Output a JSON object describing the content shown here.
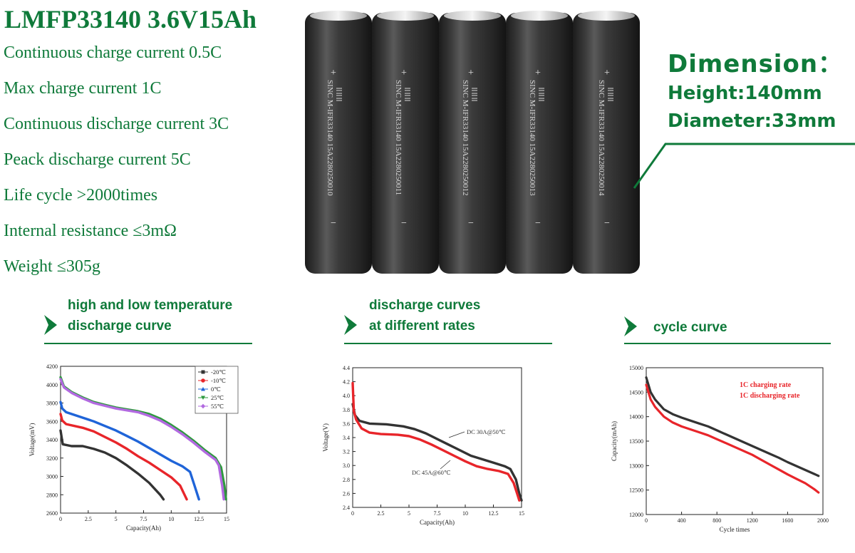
{
  "header": {
    "title": "LMFP33140 3.6V15Ah",
    "specs": [
      "Continuous charge current 0.5C",
      "Max charge current 1C",
      "Continuous discharge current 3C",
      "Peack discharge current 5C",
      "Life cycle >2000times",
      "Internal resistance ≤3mΩ",
      "Weight ≤305g"
    ]
  },
  "product": {
    "cell_labels": [
      "SINC M-IFR33140 15A2280250010",
      "SINC M-IFR33140 15A2280250011",
      "SINC M-IFR33140 15A2280250012",
      "SINC M-IFR33140 15A2280250013",
      "SINC M-IFR33140 15A2280250014"
    ],
    "plus": "+",
    "minus": "−"
  },
  "dimension": {
    "title": "Dimension：",
    "height": "Height:140mm",
    "diameter": "Diameter:33mm"
  },
  "sections": {
    "temp": [
      "high and low temperature",
      "discharge curve"
    ],
    "rates": [
      "discharge curves",
      "at different rates"
    ],
    "cycle": [
      "cycle curve"
    ]
  },
  "colors": {
    "brand_green": "#0f7a3a",
    "black_series": "#333333",
    "red_series": "#e8252a",
    "blue_series": "#1f64d8",
    "green_series": "#2e9a3e",
    "purple_series": "#b26ae0"
  },
  "chart_data": [
    {
      "type": "line",
      "title": "high and low temperature discharge curve",
      "xlabel": "Capacity(Ah)",
      "ylabel": "Voltage(mV)",
      "xlim": [
        0,
        15
      ],
      "ylim": [
        2600,
        4200
      ],
      "xticks": [
        "0",
        "2.5",
        "5",
        "7.5",
        "10",
        "12.5",
        "15"
      ],
      "yticks": [
        "2600",
        "2800",
        "3000",
        "3200",
        "3400",
        "3600",
        "3800",
        "4000",
        "4200"
      ],
      "legend_position": "top-right",
      "series": [
        {
          "name": "-20℃",
          "color": "#333333",
          "marker": "square",
          "points": [
            [
              0,
              3500
            ],
            [
              0.1,
              3420
            ],
            [
              0.2,
              3350
            ],
            [
              1,
              3330
            ],
            [
              2,
              3330
            ],
            [
              3,
              3300
            ],
            [
              4,
              3260
            ],
            [
              5,
              3200
            ],
            [
              6,
              3120
            ],
            [
              7,
              3030
            ],
            [
              8,
              2930
            ],
            [
              9,
              2800
            ],
            [
              9.3,
              2750
            ]
          ]
        },
        {
          "name": "-10℃",
          "color": "#e8252a",
          "marker": "circle",
          "points": [
            [
              0,
              3680
            ],
            [
              0.15,
              3610
            ],
            [
              0.5,
              3570
            ],
            [
              2,
              3530
            ],
            [
              3,
              3490
            ],
            [
              4,
              3430
            ],
            [
              5,
              3370
            ],
            [
              6,
              3300
            ],
            [
              7,
              3220
            ],
            [
              8,
              3150
            ],
            [
              9,
              3070
            ],
            [
              10,
              2990
            ],
            [
              10.8,
              2900
            ],
            [
              11.2,
              2800
            ],
            [
              11.4,
              2750
            ]
          ]
        },
        {
          "name": "0℃",
          "color": "#1f64d8",
          "marker": "triangle-up",
          "points": [
            [
              0,
              3810
            ],
            [
              0.15,
              3740
            ],
            [
              0.5,
              3700
            ],
            [
              2,
              3640
            ],
            [
              3,
              3600
            ],
            [
              4,
              3550
            ],
            [
              5,
              3500
            ],
            [
              6,
              3440
            ],
            [
              7,
              3380
            ],
            [
              8,
              3310
            ],
            [
              9,
              3240
            ],
            [
              10,
              3170
            ],
            [
              11,
              3110
            ],
            [
              11.7,
              3050
            ],
            [
              12.1,
              2900
            ],
            [
              12.5,
              2750
            ]
          ]
        },
        {
          "name": "25℃",
          "color": "#2e9a3e",
          "marker": "triangle-down",
          "points": [
            [
              0,
              4080
            ],
            [
              0.3,
              3980
            ],
            [
              1,
              3920
            ],
            [
              2,
              3860
            ],
            [
              3,
              3810
            ],
            [
              4,
              3780
            ],
            [
              5,
              3750
            ],
            [
              6,
              3730
            ],
            [
              7,
              3710
            ],
            [
              8,
              3680
            ],
            [
              9,
              3630
            ],
            [
              10,
              3560
            ],
            [
              11,
              3480
            ],
            [
              12,
              3390
            ],
            [
              13,
              3290
            ],
            [
              14,
              3200
            ],
            [
              14.5,
              3100
            ],
            [
              14.8,
              2900
            ],
            [
              14.95,
              2750
            ]
          ]
        },
        {
          "name": "55℃",
          "color": "#b26ae0",
          "marker": "diamond",
          "points": [
            [
              0,
              4060
            ],
            [
              0.3,
              3970
            ],
            [
              1,
              3910
            ],
            [
              2,
              3850
            ],
            [
              3,
              3800
            ],
            [
              4,
              3770
            ],
            [
              5,
              3740
            ],
            [
              6,
              3720
            ],
            [
              7,
              3700
            ],
            [
              8,
              3660
            ],
            [
              9,
              3610
            ],
            [
              10,
              3540
            ],
            [
              11,
              3460
            ],
            [
              12,
              3370
            ],
            [
              13,
              3270
            ],
            [
              14,
              3180
            ],
            [
              14.3,
              3120
            ],
            [
              14.6,
              2900
            ],
            [
              14.75,
              2750
            ]
          ]
        }
      ]
    },
    {
      "type": "line",
      "title": "discharge curves at different rates",
      "xlabel": "Capacity(Ah)",
      "ylabel": "Voltage(V)",
      "xlim": [
        0,
        15
      ],
      "ylim": [
        2.4,
        4.4
      ],
      "xticks": [
        "0",
        "2.5",
        "5",
        "7.5",
        "10",
        "12.5",
        "15"
      ],
      "yticks": [
        "2.4",
        "2.6",
        "2.8",
        "3.0",
        "3.2",
        "3.4",
        "3.6",
        "3.8",
        "4.0",
        "4.2",
        "4.4"
      ],
      "annotations": [
        "DC 30A@50℃",
        "DC 45A@60℃"
      ],
      "series": [
        {
          "name": "DC 30A@50℃",
          "color": "#333333",
          "points": [
            [
              0,
              3.88
            ],
            [
              0.2,
              3.72
            ],
            [
              0.6,
              3.64
            ],
            [
              1.5,
              3.6
            ],
            [
              3,
              3.59
            ],
            [
              4.5,
              3.56
            ],
            [
              5.5,
              3.52
            ],
            [
              6.5,
              3.46
            ],
            [
              7.5,
              3.38
            ],
            [
              8.5,
              3.3
            ],
            [
              9.5,
              3.22
            ],
            [
              10.5,
              3.14
            ],
            [
              11.5,
              3.09
            ],
            [
              12.5,
              3.04
            ],
            [
              13.5,
              2.99
            ],
            [
              14,
              2.95
            ],
            [
              14.5,
              2.8
            ],
            [
              14.8,
              2.6
            ],
            [
              15,
              2.5
            ]
          ]
        },
        {
          "name": "DC 45A@60℃",
          "color": "#e8252a",
          "points": [
            [
              0,
              4.18
            ],
            [
              0.1,
              3.78
            ],
            [
              0.3,
              3.66
            ],
            [
              0.8,
              3.53
            ],
            [
              1.5,
              3.47
            ],
            [
              2.5,
              3.45
            ],
            [
              4,
              3.44
            ],
            [
              5,
              3.42
            ],
            [
              6,
              3.37
            ],
            [
              7,
              3.3
            ],
            [
              8,
              3.22
            ],
            [
              9,
              3.14
            ],
            [
              10,
              3.06
            ],
            [
              11,
              2.99
            ],
            [
              12,
              2.95
            ],
            [
              13,
              2.92
            ],
            [
              13.8,
              2.88
            ],
            [
              14.3,
              2.75
            ],
            [
              14.6,
              2.6
            ],
            [
              14.8,
              2.5
            ]
          ]
        }
      ]
    },
    {
      "type": "line",
      "title": "cycle curve",
      "xlabel": "Cycle times",
      "ylabel": "Capacity(mAh)",
      "xlim": [
        0,
        2000
      ],
      "ylim": [
        12000,
        15000
      ],
      "xticks": [
        "0",
        "400",
        "800",
        "1200",
        "1600",
        "2000"
      ],
      "yticks": [
        "12000",
        "12500",
        "13000",
        "13500",
        "14000",
        "14500",
        "15000"
      ],
      "annotations": [
        "1C charging rate",
        "1C discharging rate"
      ],
      "series": [
        {
          "name": "",
          "color": "#333333",
          "points": [
            [
              0,
              14800
            ],
            [
              50,
              14500
            ],
            [
              100,
              14350
            ],
            [
              200,
              14150
            ],
            [
              300,
              14050
            ],
            [
              400,
              13980
            ],
            [
              500,
              13920
            ],
            [
              600,
              13860
            ],
            [
              700,
              13800
            ],
            [
              800,
              13720
            ],
            [
              900,
              13640
            ],
            [
              1000,
              13560
            ],
            [
              1100,
              13480
            ],
            [
              1200,
              13400
            ],
            [
              1300,
              13320
            ],
            [
              1400,
              13240
            ],
            [
              1500,
              13160
            ],
            [
              1600,
              13070
            ],
            [
              1700,
              12990
            ],
            [
              1800,
              12910
            ],
            [
              1900,
              12830
            ],
            [
              1950,
              12790
            ]
          ]
        },
        {
          "name": "",
          "color": "#e8252a",
          "points": [
            [
              0,
              14650
            ],
            [
              50,
              14350
            ],
            [
              100,
              14200
            ],
            [
              200,
              14000
            ],
            [
              300,
              13880
            ],
            [
              400,
              13800
            ],
            [
              500,
              13740
            ],
            [
              600,
              13680
            ],
            [
              700,
              13620
            ],
            [
              800,
              13540
            ],
            [
              900,
              13460
            ],
            [
              1000,
              13380
            ],
            [
              1100,
              13300
            ],
            [
              1200,
              13220
            ],
            [
              1300,
              13120
            ],
            [
              1400,
              13020
            ],
            [
              1500,
              12920
            ],
            [
              1600,
              12820
            ],
            [
              1700,
              12730
            ],
            [
              1800,
              12640
            ],
            [
              1900,
              12520
            ],
            [
              1950,
              12450
            ]
          ]
        }
      ]
    }
  ]
}
